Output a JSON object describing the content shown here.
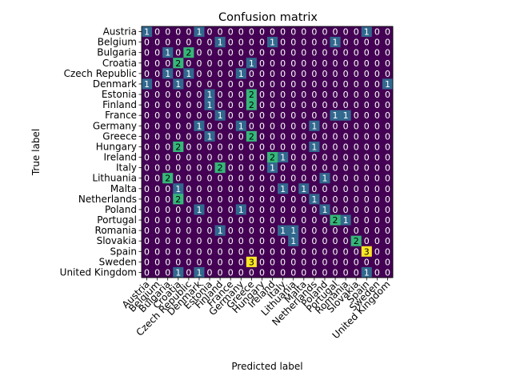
{
  "chart_data": {
    "type": "heatmap",
    "title": "Confusion matrix",
    "xlabel": "Predicted label",
    "ylabel": "True label",
    "labels": [
      "Austria",
      "Belgium",
      "Bulgaria",
      "Croatia",
      "Czech Republic",
      "Denmark",
      "Estonia",
      "Finland",
      "France",
      "Germany",
      "Greece",
      "Hungary",
      "Ireland",
      "Italy",
      "Lithuania",
      "Malta",
      "Netherlands",
      "Poland",
      "Portugal",
      "Romania",
      "Slovakia",
      "Spain",
      "Sweden",
      "United Kingdom"
    ],
    "matrix": [
      [
        1,
        0,
        0,
        0,
        0,
        1,
        0,
        0,
        0,
        0,
        0,
        0,
        0,
        0,
        0,
        0,
        0,
        0,
        0,
        0,
        0,
        1,
        0,
        0
      ],
      [
        0,
        0,
        0,
        0,
        0,
        0,
        0,
        1,
        0,
        0,
        0,
        0,
        1,
        0,
        0,
        0,
        0,
        0,
        1,
        0,
        0,
        0,
        0,
        0
      ],
      [
        0,
        0,
        1,
        0,
        2,
        0,
        0,
        0,
        0,
        0,
        0,
        0,
        0,
        0,
        0,
        0,
        0,
        0,
        0,
        0,
        0,
        0,
        0,
        0
      ],
      [
        0,
        0,
        0,
        2,
        0,
        0,
        0,
        0,
        0,
        0,
        1,
        0,
        0,
        0,
        0,
        0,
        0,
        0,
        0,
        0,
        0,
        0,
        0,
        0
      ],
      [
        0,
        0,
        1,
        0,
        1,
        0,
        0,
        0,
        0,
        1,
        0,
        0,
        0,
        0,
        0,
        0,
        0,
        0,
        0,
        0,
        0,
        0,
        0,
        0
      ],
      [
        1,
        0,
        0,
        1,
        0,
        0,
        0,
        0,
        0,
        0,
        0,
        0,
        0,
        0,
        0,
        0,
        0,
        0,
        0,
        0,
        0,
        0,
        0,
        1
      ],
      [
        0,
        0,
        0,
        0,
        0,
        0,
        1,
        0,
        0,
        0,
        2,
        0,
        0,
        0,
        0,
        0,
        0,
        0,
        0,
        0,
        0,
        0,
        0,
        0
      ],
      [
        0,
        0,
        0,
        0,
        0,
        0,
        1,
        0,
        0,
        0,
        2,
        0,
        0,
        0,
        0,
        0,
        0,
        0,
        0,
        0,
        0,
        0,
        0,
        0
      ],
      [
        0,
        0,
        0,
        0,
        0,
        0,
        0,
        1,
        0,
        0,
        0,
        0,
        0,
        0,
        0,
        0,
        0,
        0,
        1,
        1,
        0,
        0,
        0,
        0
      ],
      [
        0,
        0,
        0,
        0,
        0,
        1,
        0,
        0,
        0,
        1,
        0,
        0,
        0,
        0,
        0,
        0,
        1,
        0,
        0,
        0,
        0,
        0,
        0,
        0
      ],
      [
        0,
        0,
        0,
        0,
        0,
        0,
        1,
        0,
        0,
        0,
        2,
        0,
        0,
        0,
        0,
        0,
        0,
        0,
        0,
        0,
        0,
        0,
        0,
        0
      ],
      [
        0,
        0,
        0,
        2,
        0,
        0,
        0,
        0,
        0,
        0,
        0,
        0,
        0,
        0,
        0,
        0,
        1,
        0,
        0,
        0,
        0,
        0,
        0,
        0
      ],
      [
        0,
        0,
        0,
        0,
        0,
        0,
        0,
        0,
        0,
        0,
        0,
        0,
        2,
        1,
        0,
        0,
        0,
        0,
        0,
        0,
        0,
        0,
        0,
        0
      ],
      [
        0,
        0,
        0,
        0,
        0,
        0,
        0,
        2,
        0,
        0,
        0,
        0,
        1,
        0,
        0,
        0,
        0,
        0,
        0,
        0,
        0,
        0,
        0,
        0
      ],
      [
        0,
        0,
        2,
        0,
        0,
        0,
        0,
        0,
        0,
        0,
        0,
        0,
        0,
        0,
        0,
        0,
        0,
        1,
        0,
        0,
        0,
        0,
        0,
        0
      ],
      [
        0,
        0,
        0,
        1,
        0,
        0,
        0,
        0,
        0,
        0,
        0,
        0,
        0,
        1,
        0,
        1,
        0,
        0,
        0,
        0,
        0,
        0,
        0,
        0
      ],
      [
        0,
        0,
        0,
        2,
        0,
        0,
        0,
        0,
        0,
        0,
        0,
        0,
        0,
        0,
        0,
        0,
        1,
        0,
        0,
        0,
        0,
        0,
        0,
        0
      ],
      [
        0,
        0,
        0,
        0,
        0,
        1,
        0,
        0,
        0,
        1,
        0,
        0,
        0,
        0,
        0,
        0,
        0,
        1,
        0,
        0,
        0,
        0,
        0,
        0
      ],
      [
        0,
        0,
        0,
        0,
        0,
        0,
        0,
        0,
        0,
        0,
        0,
        0,
        0,
        0,
        0,
        0,
        0,
        0,
        2,
        1,
        0,
        0,
        0,
        0
      ],
      [
        0,
        0,
        0,
        0,
        0,
        0,
        0,
        1,
        0,
        0,
        0,
        0,
        0,
        1,
        1,
        0,
        0,
        0,
        0,
        0,
        0,
        0,
        0,
        0
      ],
      [
        0,
        0,
        0,
        0,
        0,
        0,
        0,
        0,
        0,
        0,
        0,
        0,
        0,
        0,
        1,
        0,
        0,
        0,
        0,
        0,
        2,
        0,
        0,
        0
      ],
      [
        0,
        0,
        0,
        0,
        0,
        0,
        0,
        0,
        0,
        0,
        0,
        0,
        0,
        0,
        0,
        0,
        0,
        0,
        0,
        0,
        0,
        3,
        0,
        0
      ],
      [
        0,
        0,
        0,
        0,
        0,
        0,
        0,
        0,
        0,
        0,
        3,
        0,
        0,
        0,
        0,
        0,
        0,
        0,
        0,
        0,
        0,
        0,
        0,
        0
      ],
      [
        0,
        0,
        0,
        1,
        0,
        1,
        0,
        0,
        0,
        0,
        0,
        0,
        0,
        0,
        0,
        0,
        0,
        0,
        0,
        0,
        0,
        1,
        0,
        0
      ]
    ],
    "vmin": 0,
    "vmax": 3,
    "colormap": "viridis",
    "colors": [
      "#440154",
      "#31688e",
      "#35b779",
      "#fde725"
    ],
    "annotation_colors": {
      "dark": "#ffffff",
      "light": "#000000"
    },
    "grid": false,
    "legend": "none"
  }
}
